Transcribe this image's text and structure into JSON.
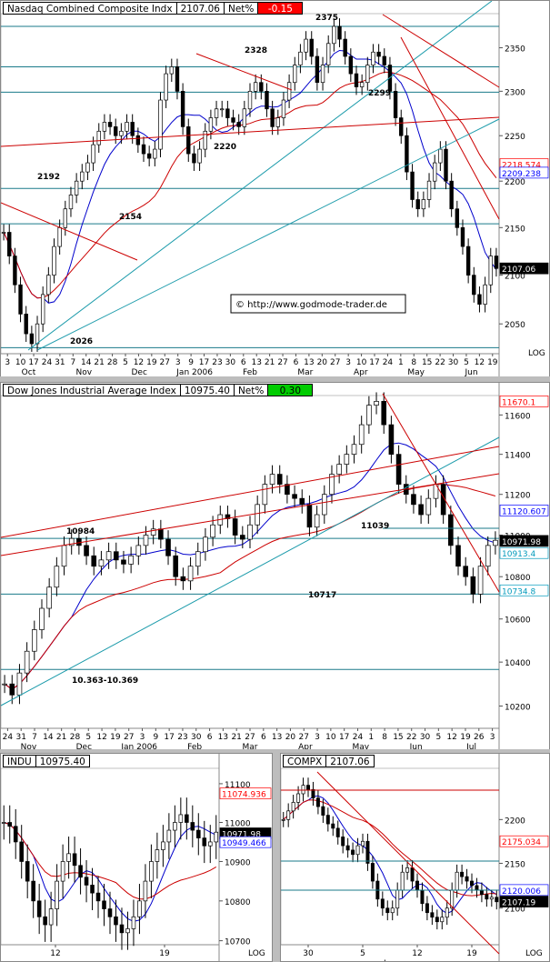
{
  "panels": {
    "nasdaq": {
      "title": "Nasdaq Combined Composite Indx",
      "value": "2107.06",
      "net_label": "Net%",
      "net_value": "-0.15",
      "net_color": "#ff0000",
      "watermark": "© http://www.godmode-trader.de",
      "log_label": "LOG"
    },
    "dow": {
      "title": "Dow Jones Industrial Average Index",
      "value": "10975.40",
      "net_label": "Net%",
      "net_value": "0.30",
      "net_color": "#00cc00"
    },
    "indu": {
      "title": "INDU",
      "value": "10975.40",
      "log_label": "LOG"
    },
    "compx": {
      "title": "COMPX",
      "value": "2107.06",
      "log_label": "LOG"
    }
  },
  "chart_data": [
    {
      "id": "nasdaq",
      "type": "candlestick",
      "title": "Nasdaq Combined Composite Indx",
      "scale": "log",
      "ylim": [
        2020,
        2390
      ],
      "yticks": [
        2050,
        2100,
        2150,
        2200,
        2250,
        2300,
        2350
      ],
      "x_ticks": [
        "3",
        "10",
        "17",
        "24",
        "31",
        "7",
        "14",
        "21",
        "28",
        "5",
        "12",
        "19",
        "27",
        "3",
        "9",
        "17",
        "23",
        "30",
        "6",
        "13",
        "21",
        "27",
        "6",
        "13",
        "20",
        "27",
        "3",
        "10",
        "17",
        "24",
        "1",
        "8",
        "15",
        "22",
        "30",
        "5",
        "12",
        "19"
      ],
      "month_labels": [
        "Oct",
        "Nov",
        "Dec",
        "Jan 2006",
        "Feb",
        "Mar",
        "Apr",
        "May",
        "Jun"
      ],
      "close_series": [
        2145,
        2120,
        2090,
        2060,
        2040,
        2030,
        2050,
        2080,
        2100,
        2130,
        2150,
        2170,
        2185,
        2200,
        2210,
        2220,
        2240,
        2255,
        2265,
        2260,
        2250,
        2255,
        2265,
        2250,
        2240,
        2230,
        2225,
        2235,
        2290,
        2320,
        2328,
        2300,
        2260,
        2230,
        2220,
        2235,
        2255,
        2270,
        2280,
        2280,
        2270,
        2265,
        2260,
        2280,
        2300,
        2310,
        2300,
        2280,
        2260,
        2270,
        2290,
        2310,
        2330,
        2345,
        2360,
        2340,
        2310,
        2330,
        2355,
        2375,
        2360,
        2340,
        2320,
        2305,
        2310,
        2330,
        2345,
        2340,
        2330,
        2300,
        2270,
        2250,
        2210,
        2180,
        2170,
        2180,
        2200,
        2220,
        2235,
        2200,
        2170,
        2150,
        2130,
        2100,
        2080,
        2070,
        2090,
        2120,
        2107
      ],
      "price_labels": [
        "2375",
        "2328",
        "2299",
        "2220",
        "2192",
        "2154",
        "2026"
      ],
      "right_labels": [
        {
          "text": "2218.574",
          "value": 2218.574,
          "color": "#ff0000"
        },
        {
          "text": "2209.238",
          "value": 2209.238,
          "color": "#0000ff"
        },
        {
          "text": "2107.06",
          "value": 2107.06,
          "color": "#000000"
        }
      ],
      "horizontal_levels": [
        2375,
        2328,
        2299,
        2192,
        2154,
        2026
      ]
    },
    {
      "id": "dow",
      "type": "candlestick",
      "title": "Dow Jones Industrial Average Index",
      "scale": "log",
      "ylim": [
        10100,
        11700
      ],
      "yticks": [
        10200,
        10400,
        10600,
        10800,
        11000,
        11200,
        11400,
        11600
      ],
      "x_ticks": [
        "24",
        "31",
        "7",
        "14",
        "21",
        "28",
        "5",
        "12",
        "19",
        "27",
        "3",
        "9",
        "17",
        "23",
        "30",
        "6",
        "13",
        "21",
        "27",
        "6",
        "13",
        "20",
        "27",
        "3",
        "10",
        "17",
        "24",
        "1",
        "8",
        "15",
        "22",
        "30",
        "5",
        "12",
        "19",
        "26",
        "3"
      ],
      "month_labels": [
        "Nov",
        "Dec",
        "Jan 2006",
        "Feb",
        "Mar",
        "Apr",
        "May",
        "Jun",
        "Jul"
      ],
      "close_series": [
        10300,
        10250,
        10350,
        10450,
        10550,
        10650,
        10750,
        10850,
        10950,
        10984,
        10950,
        10900,
        10850,
        10880,
        10920,
        10880,
        10860,
        10900,
        10950,
        11000,
        11030,
        10980,
        10900,
        10800,
        10780,
        10850,
        10920,
        10990,
        11050,
        11100,
        11080,
        11000,
        10980,
        11050,
        11150,
        11250,
        11300,
        11250,
        11200,
        11180,
        11150,
        11039,
        11100,
        11200,
        11300,
        11350,
        11400,
        11450,
        11550,
        11650,
        11670,
        11550,
        11400,
        11250,
        11200,
        11150,
        11100,
        11180,
        11250,
        11100,
        10950,
        10850,
        10800,
        10717,
        10850,
        10950,
        10975
      ],
      "price_labels": [
        "10984",
        "11039",
        "10717",
        "10.363-10.369"
      ],
      "right_labels": [
        {
          "text": "11670.1",
          "value": 11670.1,
          "color": "#ff0000"
        },
        {
          "text": "11120.607",
          "value": 11120.607,
          "color": "#0000ff"
        },
        {
          "text": "10971.98",
          "value": 10971.98,
          "color": "#000000"
        },
        {
          "text": "10913.4",
          "value": 10913.4,
          "color": "#0099bb"
        },
        {
          "text": "10734.8",
          "value": 10734.8,
          "color": "#0099bb"
        }
      ],
      "horizontal_levels": [
        10984,
        10717,
        10366
      ]
    },
    {
      "id": "indu",
      "type": "candlestick",
      "title": "INDU",
      "scale": "log",
      "ylim": [
        10690,
        11140
      ],
      "yticks": [
        10700,
        10800,
        10900,
        11000,
        11100
      ],
      "x_ticks": [
        "12",
        "19"
      ],
      "close_series": [
        11000,
        10990,
        10950,
        10900,
        10850,
        10800,
        10760,
        10740,
        10780,
        10850,
        10900,
        10920,
        10890,
        10860,
        10840,
        10820,
        10800,
        10780,
        10760,
        10740,
        10720,
        10730,
        10760,
        10800,
        10850,
        10900,
        10930,
        10950,
        10980,
        11000,
        11020,
        11000,
        10980,
        10960,
        10940,
        10950,
        10975
      ],
      "right_labels": [
        {
          "text": "11074.936",
          "value": 11074.936,
          "color": "#ff0000"
        },
        {
          "text": "10971.98",
          "value": 10971.98,
          "color": "#000000"
        },
        {
          "text": "10949.466",
          "value": 10949.466,
          "color": "#0000ff"
        }
      ]
    },
    {
      "id": "compx",
      "type": "candlestick",
      "title": "COMPX",
      "scale": "log",
      "ylim": [
        2060,
        2260
      ],
      "yticks": [
        2100,
        2150,
        2200
      ],
      "x_ticks": [
        "30",
        "5",
        "12",
        "19"
      ],
      "month_labels": [
        "Jun"
      ],
      "close_series": [
        2200,
        2210,
        2220,
        2230,
        2240,
        2235,
        2225,
        2215,
        2205,
        2195,
        2190,
        2180,
        2170,
        2165,
        2160,
        2170,
        2175,
        2150,
        2130,
        2110,
        2100,
        2095,
        2100,
        2120,
        2140,
        2145,
        2130,
        2120,
        2105,
        2095,
        2090,
        2085,
        2090,
        2100,
        2120,
        2140,
        2135,
        2130,
        2125,
        2120,
        2115,
        2110,
        2112,
        2107
      ],
      "right_labels": [
        {
          "text": "2175.034",
          "value": 2175.034,
          "color": "#ff0000"
        },
        {
          "text": "2120.006",
          "value": 2120.006,
          "color": "#0000ff"
        },
        {
          "text": "2107.19",
          "value": 2107.19,
          "color": "#000000"
        }
      ]
    }
  ]
}
